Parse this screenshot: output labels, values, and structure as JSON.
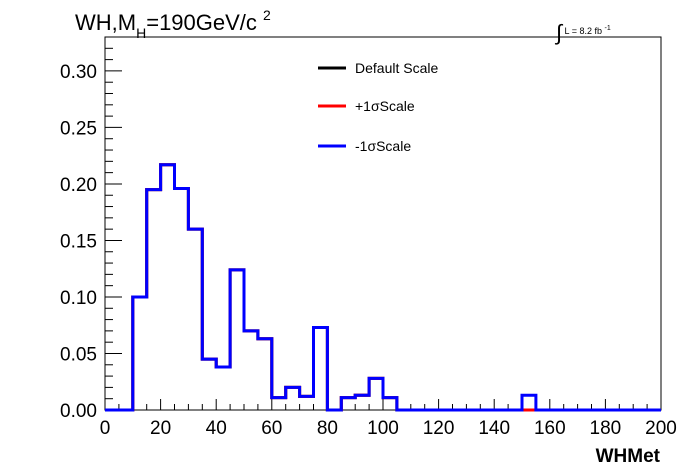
{
  "chart_title": {
    "prefix": "WH,M",
    "subscript": "H",
    "value": "=190GeV/c",
    "superscript": "2"
  },
  "lumi_label": {
    "integral": "∫",
    "text": "L = 8.2 fb",
    "superscript": "-1"
  },
  "chart_data": {
    "type": "line",
    "title": "WH,MH=190GeV/c2",
    "xlabel": "WHMet",
    "ylabel": "",
    "xlim": [
      0,
      200
    ],
    "ylim": [
      0,
      0.33
    ],
    "x_ticks": [
      0,
      20,
      40,
      60,
      80,
      100,
      120,
      140,
      160,
      180,
      200
    ],
    "y_ticks": [
      "0.00",
      "0.05",
      "0.10",
      "0.15",
      "0.20",
      "0.25",
      "0.30"
    ],
    "bin_width": 5,
    "bin_low_edges": [
      0,
      5,
      10,
      15,
      20,
      25,
      30,
      35,
      40,
      45,
      50,
      55,
      60,
      65,
      70,
      75,
      80,
      85,
      90,
      95,
      100,
      105,
      110,
      115,
      120,
      125,
      130,
      135,
      140,
      145,
      150,
      155,
      160,
      165,
      170,
      175,
      180,
      185,
      190,
      195
    ],
    "legend_position": "top-center",
    "series": [
      {
        "name": "Default Scale",
        "color": "#000000",
        "values": [
          0,
          0,
          0.1,
          0.195,
          0.217,
          0.196,
          0.16,
          0.045,
          0.038,
          0.124,
          0.07,
          0.063,
          0.011,
          0.02,
          0.012,
          0.073,
          0,
          0.011,
          0.013,
          0.028,
          0.011,
          0,
          0,
          0,
          0,
          0,
          0,
          0,
          0,
          0,
          0,
          0,
          0,
          0,
          0,
          0,
          0,
          0,
          0,
          0
        ]
      },
      {
        "name": "+1σScale",
        "color": "#ff0000",
        "values": [
          0,
          0,
          0.1,
          0.195,
          0.217,
          0.196,
          0.16,
          0.045,
          0.038,
          0.124,
          0.07,
          0.063,
          0.011,
          0.02,
          0.012,
          0.073,
          0,
          0.011,
          0.013,
          0.028,
          0.011,
          0,
          0,
          0,
          0,
          0,
          0,
          0,
          0,
          0,
          0,
          0,
          0,
          0,
          0,
          0,
          0,
          0,
          0,
          0
        ]
      },
      {
        "name": "-1σScale",
        "color": "#0000ff",
        "values": [
          0,
          0,
          0.1,
          0.195,
          0.217,
          0.196,
          0.16,
          0.045,
          0.038,
          0.124,
          0.07,
          0.063,
          0.011,
          0.02,
          0.012,
          0.073,
          0,
          0.011,
          0.013,
          0.028,
          0.011,
          0,
          0,
          0,
          0,
          0,
          0,
          0,
          0,
          0,
          0.013,
          0,
          0,
          0,
          0,
          0,
          0,
          0,
          0,
          0
        ]
      }
    ]
  }
}
